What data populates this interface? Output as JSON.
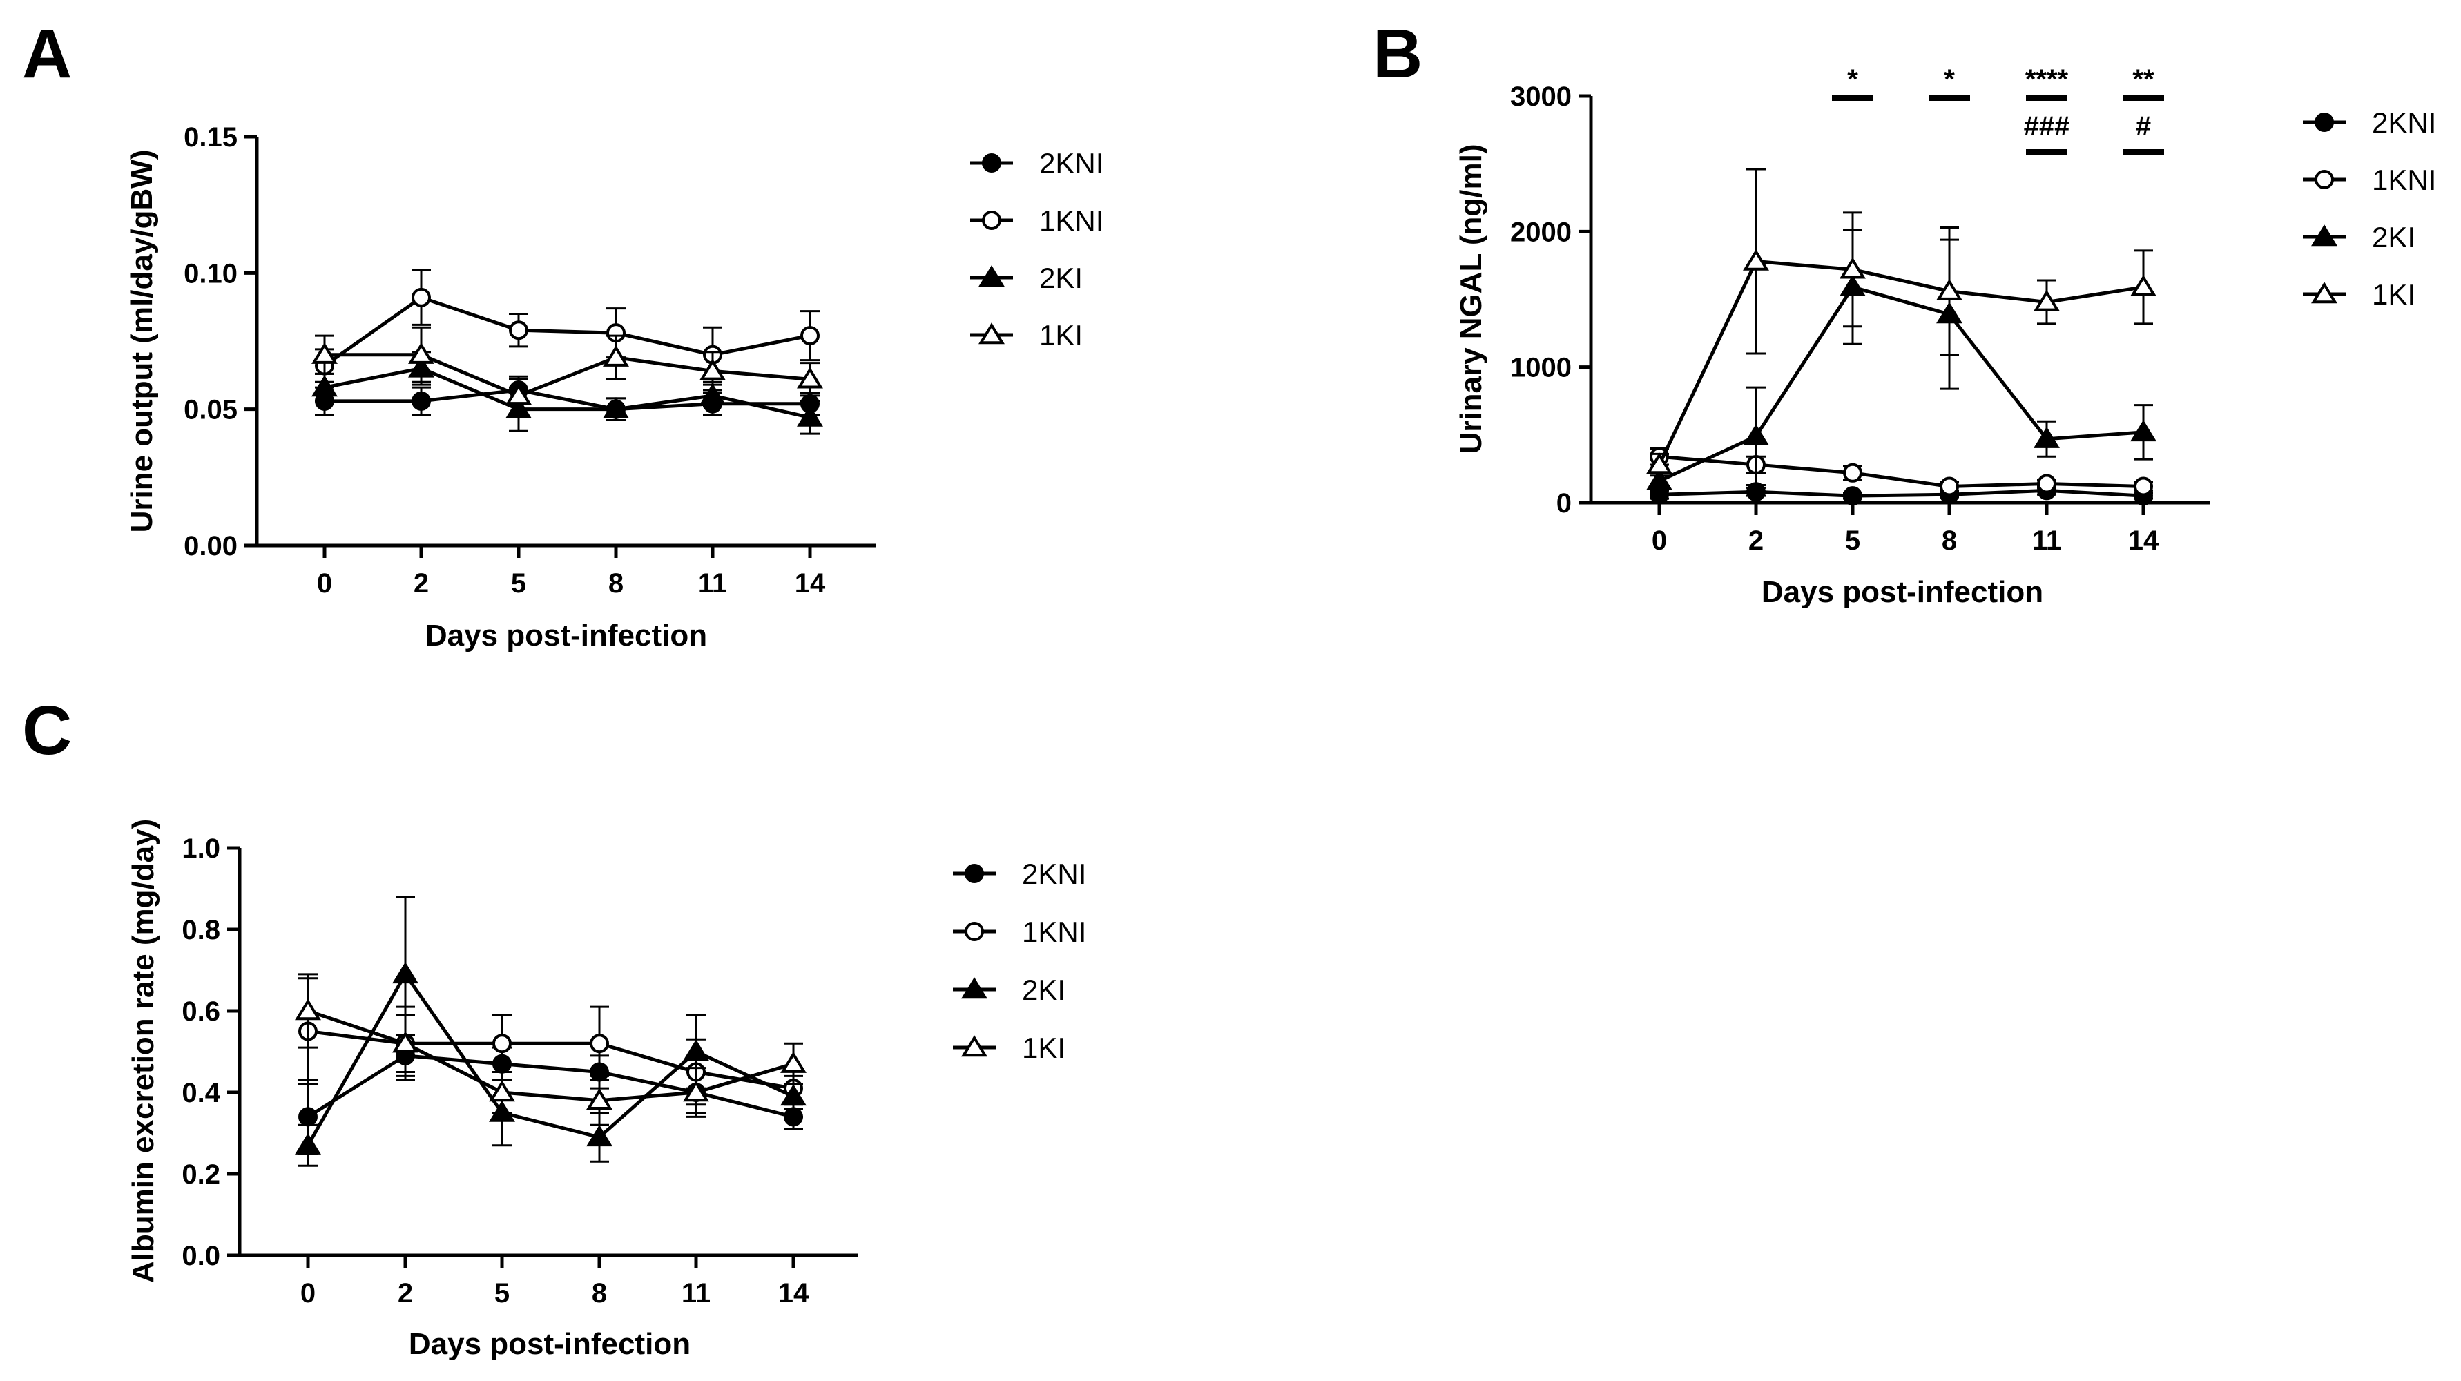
{
  "chart_data": [
    {
      "panel": "A",
      "type": "line",
      "xlabel": "Days post-infection",
      "ylabel": "Urine output (ml/day/gBW)",
      "ylim": [
        0,
        0.15
      ],
      "yticks": [
        "0.00",
        "0.05",
        "0.10",
        "0.15"
      ],
      "categories": [
        "0",
        "2",
        "5",
        "8",
        "11",
        "14"
      ],
      "legend_position": "right",
      "series": [
        {
          "name": "2KNI",
          "marker": "circle-filled",
          "values": [
            0.053,
            0.053,
            0.057,
            0.05,
            0.052,
            0.052
          ],
          "errors": [
            0.005,
            0.005,
            0.004,
            0.004,
            0.004,
            0.004
          ]
        },
        {
          "name": "1KNI",
          "marker": "circle-open",
          "values": [
            0.066,
            0.091,
            0.079,
            0.078,
            0.07,
            0.077
          ],
          "errors": [
            0.006,
            0.01,
            0.006,
            0.009,
            0.01,
            0.009
          ]
        },
        {
          "name": "2KI",
          "marker": "triangle-filled",
          "values": [
            0.058,
            0.065,
            0.05,
            0.05,
            0.055,
            0.047
          ],
          "errors": [
            0.005,
            0.006,
            0.008,
            0.004,
            0.004,
            0.006
          ]
        },
        {
          "name": "1KI",
          "marker": "triangle-open",
          "values": [
            0.07,
            0.07,
            0.055,
            0.069,
            0.064,
            0.061
          ],
          "errors": [
            0.007,
            0.01,
            0.007,
            0.008,
            0.007,
            0.006
          ]
        }
      ]
    },
    {
      "panel": "B",
      "type": "line",
      "xlabel": "Days post-infection",
      "ylabel": "Urinary NGAL (ng/ml)",
      "ylim": [
        0,
        3000
      ],
      "yticks": [
        "0",
        "1000",
        "2000",
        "3000"
      ],
      "categories": [
        "0",
        "2",
        "5",
        "8",
        "11",
        "14"
      ],
      "legend_position": "right",
      "significance": [
        {
          "category": "5",
          "row": "top",
          "label": "*"
        },
        {
          "category": "8",
          "row": "top",
          "label": "*"
        },
        {
          "category": "11",
          "row": "top",
          "label": "****"
        },
        {
          "category": "14",
          "row": "top",
          "label": "**"
        },
        {
          "category": "11",
          "row": "bottom",
          "label": "###"
        },
        {
          "category": "14",
          "row": "bottom",
          "label": "#"
        }
      ],
      "series": [
        {
          "name": "2KNI",
          "marker": "circle-filled",
          "values": [
            60,
            80,
            50,
            60,
            90,
            50
          ],
          "errors": [
            30,
            30,
            20,
            20,
            30,
            20
          ]
        },
        {
          "name": "1KNI",
          "marker": "circle-open",
          "values": [
            340,
            280,
            220,
            120,
            140,
            120
          ],
          "errors": [
            60,
            60,
            50,
            30,
            30,
            30
          ]
        },
        {
          "name": "2KI",
          "marker": "triangle-filled",
          "values": [
            160,
            490,
            1590,
            1390,
            470,
            520
          ],
          "errors": [
            60,
            360,
            420,
            550,
            130,
            200
          ]
        },
        {
          "name": "1KI",
          "marker": "triangle-open",
          "values": [
            280,
            1780,
            1720,
            1560,
            1480,
            1590
          ],
          "errors": [
            80,
            680,
            420,
            470,
            160,
            270
          ]
        }
      ]
    },
    {
      "panel": "C",
      "type": "line",
      "xlabel": "Days post-infection",
      "ylabel": "Albumin excretion rate (mg/day)",
      "ylim": [
        0,
        1.0
      ],
      "yticks": [
        "0.0",
        "0.2",
        "0.4",
        "0.6",
        "0.8",
        "1.0"
      ],
      "categories": [
        "0",
        "2",
        "5",
        "8",
        "11",
        "14"
      ],
      "legend_position": "right",
      "series": [
        {
          "name": "2KNI",
          "marker": "circle-filled",
          "values": [
            0.34,
            0.49,
            0.47,
            0.45,
            0.4,
            0.34
          ],
          "errors": [
            0.09,
            0.05,
            0.04,
            0.04,
            0.05,
            0.03
          ]
        },
        {
          "name": "1KNI",
          "marker": "circle-open",
          "values": [
            0.55,
            0.52,
            0.52,
            0.52,
            0.45,
            0.41
          ],
          "errors": [
            0.13,
            0.07,
            0.07,
            0.09,
            0.08,
            0.05
          ]
        },
        {
          "name": "2KI",
          "marker": "triangle-filled",
          "values": [
            0.27,
            0.69,
            0.35,
            0.29,
            0.5,
            0.39
          ],
          "errors": [
            0.05,
            0.19,
            0.08,
            0.06,
            0.09,
            0.05
          ]
        },
        {
          "name": "1KI",
          "marker": "triangle-open",
          "values": [
            0.6,
            0.52,
            0.4,
            0.38,
            0.4,
            0.47
          ],
          "errors": [
            0.09,
            0.09,
            0.05,
            0.06,
            0.06,
            0.05
          ]
        }
      ]
    }
  ]
}
